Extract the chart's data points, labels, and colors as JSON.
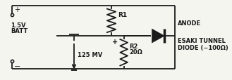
{
  "bg_color": "#f5f5f0",
  "line_color": "#1a1a1a",
  "lw": 1.3,
  "batt_label_v": "1.5V",
  "batt_label_b": "BATT",
  "r1_label": "R1",
  "r2_label": "R2",
  "r2_ohm": "20Ω",
  "vmeter_label": "125 MV",
  "anode_label": "ANODE",
  "diode_line1": "ESAKI TUNNEL",
  "diode_line2": "DIODE (−100Ω)"
}
